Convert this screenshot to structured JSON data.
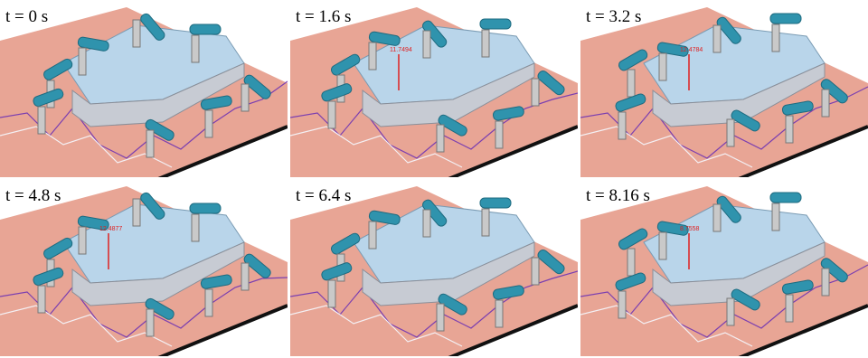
{
  "panels": [
    {
      "label": "t = 0 s",
      "forces": []
    },
    {
      "label": "t = 1.6 s",
      "forces": [
        "11.7494"
      ]
    },
    {
      "label": "t = 3.2 s",
      "forces": [
        "12.4784"
      ]
    },
    {
      "label": "t = 4.8 s",
      "forces": [
        "12.4877"
      ]
    },
    {
      "label": "t = 6.4 s",
      "forces": []
    },
    {
      "label": "t = 8.16 s",
      "forces": [
        "8.7558"
      ]
    }
  ]
}
